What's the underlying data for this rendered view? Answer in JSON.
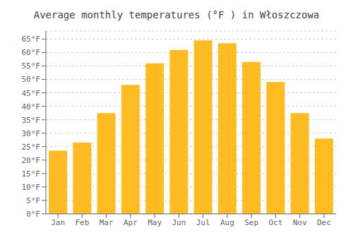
{
  "chart_data": {
    "type": "bar",
    "title": "Average monthly temperatures (°F ) in Włoszczowa",
    "categories": [
      "Jan",
      "Feb",
      "Mar",
      "Apr",
      "May",
      "Jun",
      "Jul",
      "Aug",
      "Sep",
      "Oct",
      "Nov",
      "Dec"
    ],
    "values": [
      23.5,
      26.5,
      37.5,
      48.0,
      56.0,
      61.0,
      64.5,
      63.5,
      56.5,
      49.0,
      37.5,
      28.0
    ],
    "color": "#FFBB22",
    "ylim": [
      0,
      68
    ],
    "yticks": [
      {
        "value": 0,
        "label": "0°F"
      },
      {
        "value": 5,
        "label": "5°F"
      },
      {
        "value": 10,
        "label": "10°F"
      },
      {
        "value": 15,
        "label": "15°F"
      },
      {
        "value": 20,
        "label": "20°F"
      },
      {
        "value": 25,
        "label": "25°F"
      },
      {
        "value": 30,
        "label": "30°F"
      },
      {
        "value": 35,
        "label": "35°F"
      },
      {
        "value": 40,
        "label": "40°F"
      },
      {
        "value": 45,
        "label": "45°F"
      },
      {
        "value": 50,
        "label": "50°F"
      },
      {
        "value": 55,
        "label": "55°F"
      },
      {
        "value": 60,
        "label": "60°F"
      },
      {
        "value": 65,
        "label": "65°F"
      }
    ],
    "grid": true
  }
}
